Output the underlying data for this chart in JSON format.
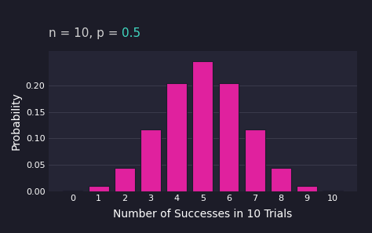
{
  "n": 10,
  "p": 0.5,
  "x_values": [
    0,
    1,
    2,
    3,
    4,
    5,
    6,
    7,
    8,
    9,
    10
  ],
  "probabilities": [
    0.0009765625,
    0.009765625,
    0.04394531,
    0.1171875,
    0.20507813,
    0.24609375,
    0.20507813,
    0.1171875,
    0.04394531,
    0.009765625,
    0.0009765625
  ],
  "bar_color": "#e0219e",
  "bar_edge_color": "#1c1c2c",
  "background_color": "#1c1c28",
  "axes_bg_color": "#252535",
  "text_color": "#ffffff",
  "title_text_white": "n = 10, p = ",
  "title_text_teal": "0.5",
  "title_color_white": "#d0d0d0",
  "title_color_teal": "#40d8c0",
  "grid_color": "#444455",
  "xlabel": "Number of Successes in 10 Trials",
  "ylabel": "Probability",
  "ylim": [
    0,
    0.265
  ],
  "yticks": [
    0.0,
    0.05,
    0.1,
    0.15,
    0.2
  ],
  "xticks": [
    0,
    1,
    2,
    3,
    4,
    5,
    6,
    7,
    8,
    9,
    10
  ],
  "xlabel_fontsize": 10,
  "ylabel_fontsize": 10,
  "tick_fontsize": 8,
  "title_fontsize": 11,
  "bar_width": 0.78
}
